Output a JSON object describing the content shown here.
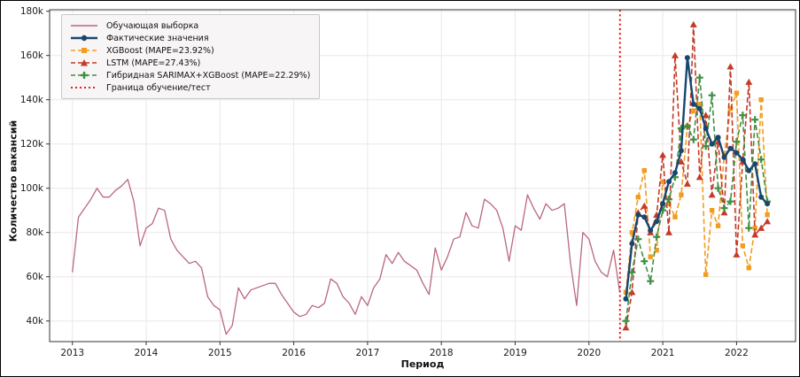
{
  "chart_data": {
    "type": "line",
    "title": "",
    "xlabel": "Период",
    "ylabel": "Количество вакансий",
    "units": "thousands of vacancies",
    "grid": true,
    "legend_position": "upper-left",
    "y_tick_values": [
      40,
      60,
      80,
      100,
      120,
      140,
      160,
      180
    ],
    "y_tick_labels": [
      "40k",
      "60k",
      "80k",
      "100k",
      "120k",
      "140k",
      "160k",
      "180k"
    ],
    "x_tick_years": [
      2013,
      2014,
      2015,
      2016,
      2017,
      2018,
      2019,
      2020,
      2021,
      2022
    ],
    "ylim_k": [
      30,
      181
    ],
    "train": {
      "name": "Обучающая выборка",
      "color": "#b9687e",
      "start": "2013-01",
      "values_k": [
        62,
        87,
        91,
        95,
        100,
        96,
        96,
        99,
        101,
        104,
        94,
        74,
        82,
        84,
        91,
        90,
        77,
        72,
        69,
        66,
        67,
        64,
        51,
        47,
        45,
        34,
        38,
        55,
        50,
        54,
        55,
        56,
        57,
        57,
        52,
        48,
        44,
        42,
        43,
        47,
        46,
        48,
        59,
        57,
        51,
        48,
        43,
        51,
        47,
        55,
        59,
        70,
        66,
        71,
        67,
        65,
        63,
        57,
        52,
        73,
        63,
        69,
        77,
        78,
        89,
        83,
        82,
        95,
        93,
        90,
        82,
        67,
        83,
        81,
        97,
        91,
        86,
        93,
        90,
        91,
        93,
        66,
        47,
        80,
        77,
        67,
        62,
        60,
        72,
        53
      ]
    },
    "test_start": "2020-07",
    "test_series": [
      {
        "id": "actual",
        "name": "Фактические значения",
        "color": "#17466f",
        "marker": "circle",
        "dashed": false,
        "line_width": 2.4,
        "values_k": [
          50,
          75,
          88,
          87,
          81,
          85,
          93,
          103,
          107,
          117,
          159,
          138,
          136,
          127,
          120,
          123,
          114,
          118,
          116,
          113,
          108,
          111,
          96,
          93
        ]
      },
      {
        "id": "xgboost",
        "name": "XGBoost (MAPE=23.92%)",
        "color": "#f39c1f",
        "marker": "square",
        "dashed": true,
        "line_width": 1.6,
        "values_k": [
          53,
          80,
          96,
          108,
          69,
          72,
          103,
          93,
          87,
          97,
          128,
          135,
          138,
          61,
          90,
          83,
          115,
          136,
          143,
          74,
          64,
          82,
          140,
          88
        ]
      },
      {
        "id": "lstm",
        "name": "LSTM (MAPE=27.43%)",
        "color": "#c43b28",
        "marker": "triangle",
        "dashed": true,
        "line_width": 1.6,
        "values_k": [
          37,
          53,
          89,
          92,
          80,
          88,
          115,
          80,
          160,
          112,
          102,
          174,
          105,
          133,
          97,
          121,
          89,
          155,
          70,
          112,
          148,
          79,
          82,
          85
        ]
      },
      {
        "id": "hybrid",
        "name": "Гибридная SARIMAX+XGBoost (MAPE=22.29%)",
        "color": "#3f8f43",
        "marker": "plus",
        "dashed": true,
        "line_width": 1.6,
        "values_k": [
          40,
          62,
          77,
          67,
          58,
          78,
          90,
          95,
          105,
          127,
          128,
          122,
          150,
          119,
          142,
          100,
          91,
          94,
          121,
          133,
          82,
          131,
          113,
          94
        ]
      }
    ],
    "boundary": {
      "name": "Граница обучение/тест",
      "color": "#e02421",
      "x_year": 2020.42
    },
    "mape": {
      "xgboost": "23.92%",
      "lstm": "27.43%",
      "hybrid": "22.29%"
    },
    "colors": {
      "grid": "#ede6e8",
      "frame": "#333333",
      "tick_text": "#1a1a1a"
    }
  }
}
